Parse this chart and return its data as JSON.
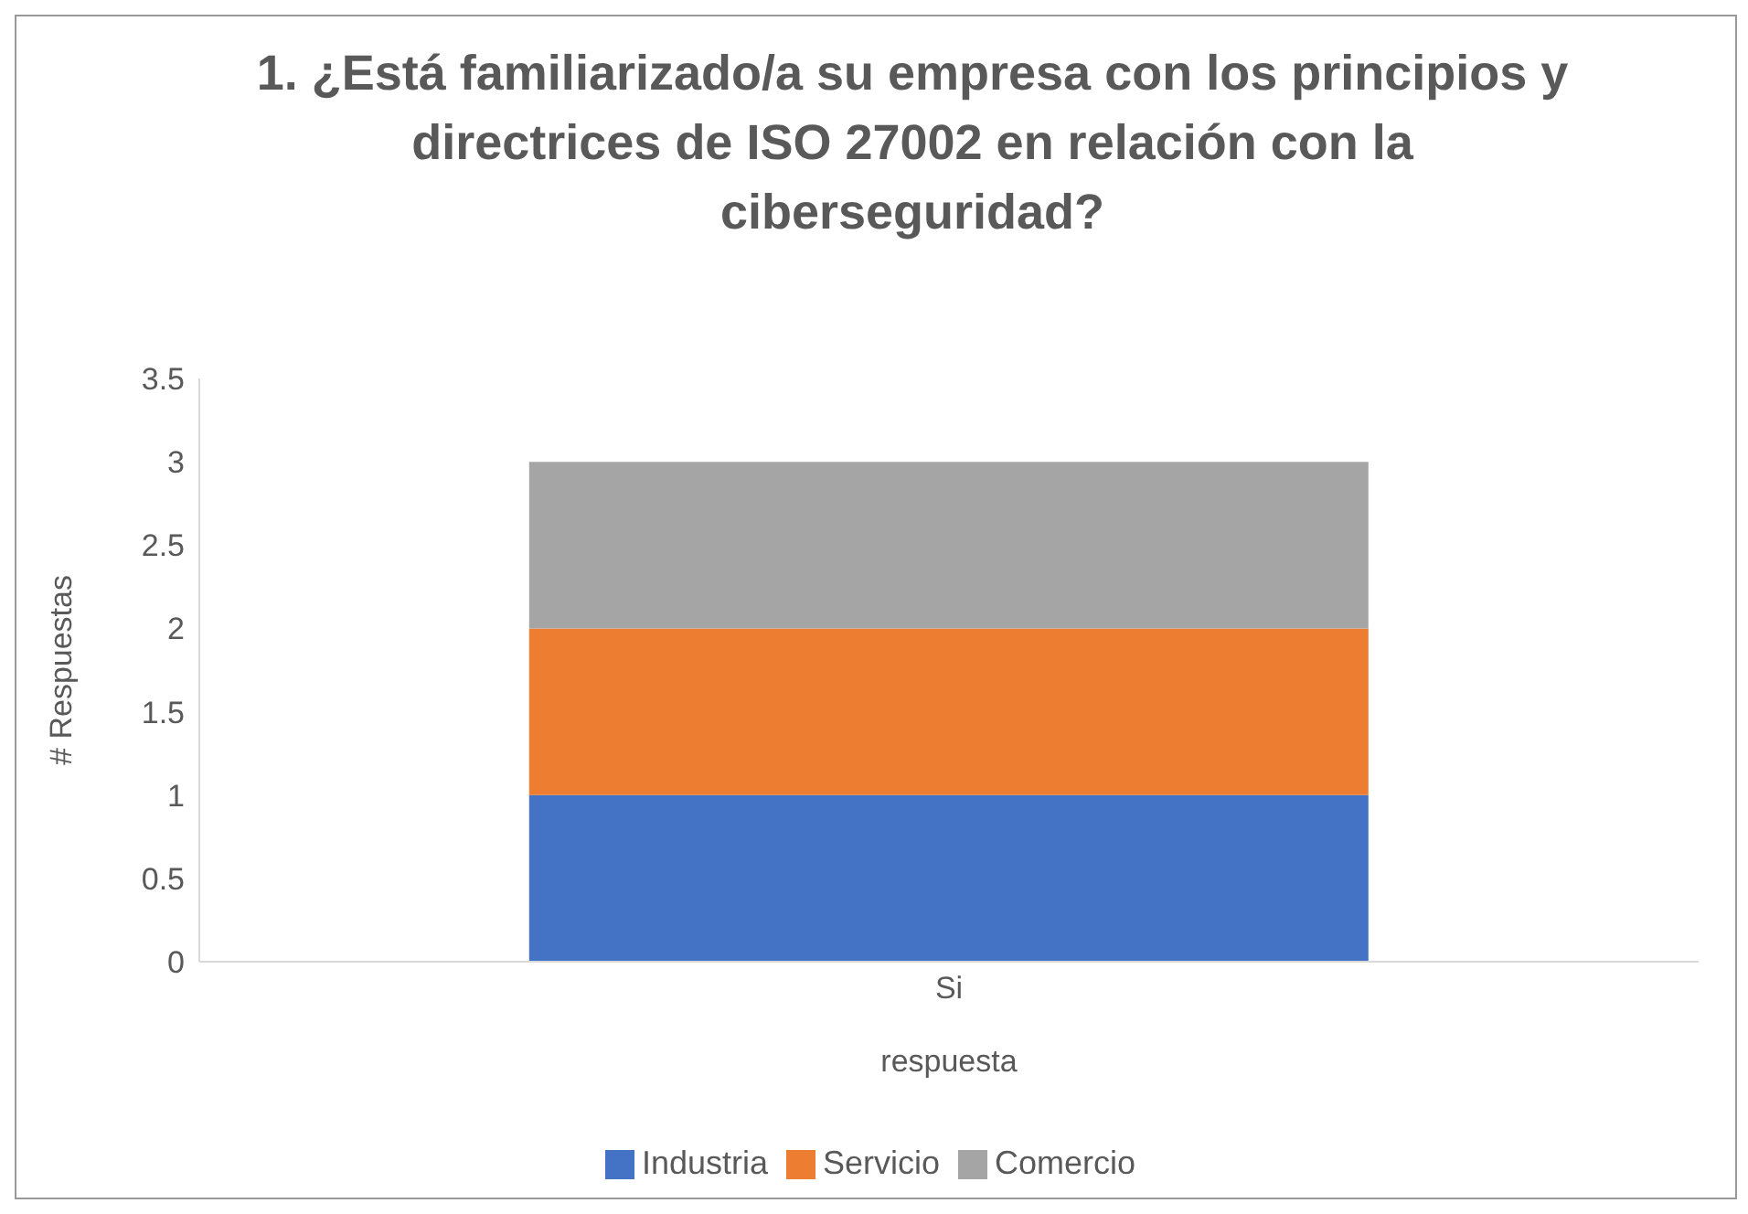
{
  "chart_data": {
    "type": "bar",
    "title": "1. ¿Está familiarizado/a su empresa con los principios y directrices de ISO 27002 en relación con la ciberseguridad?",
    "xlabel": "respuesta",
    "ylabel": "# Respuestas",
    "categories": [
      "Si"
    ],
    "stacked": true,
    "series": [
      {
        "name": "Industria",
        "color": "#4472c4",
        "values": [
          1
        ]
      },
      {
        "name": "Servicio",
        "color": "#ed7d31",
        "values": [
          1
        ]
      },
      {
        "name": "Comercio",
        "color": "#a5a5a5",
        "values": [
          1
        ]
      }
    ],
    "ylim": [
      0,
      3.5
    ],
    "yticks": [
      0,
      0.5,
      1,
      1.5,
      2,
      2.5,
      3,
      3.5
    ],
    "legend": "bottom"
  }
}
